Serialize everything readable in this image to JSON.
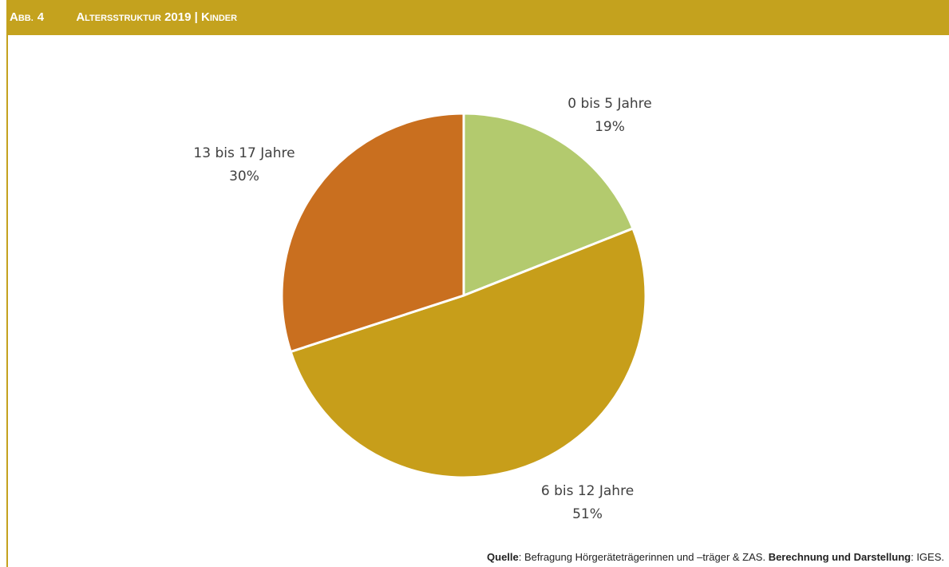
{
  "header": {
    "abb_first": "A",
    "abb_rest": "BB.",
    "abb_number": "4",
    "title_a_first": "A",
    "title_a_rest": "LTERSSTRUKTUR",
    "title_year": "2019",
    "title_sep": "|",
    "title_b_first": "K",
    "title_b_rest": "INDER"
  },
  "colors": {
    "accent": "#C4A21E",
    "slice_0_5": "#B3CA6E",
    "slice_6_12": "#C79E1A",
    "slice_13_17": "#C96F1F"
  },
  "chart_data": {
    "type": "pie",
    "title": "ABB. 4 ALTERSSTRUKTUR 2019 | KINDER",
    "slices": [
      {
        "label": "0 bis 5 Jahre",
        "value": 19,
        "value_label": "19%",
        "color": "#B3CA6E"
      },
      {
        "label": "6 bis 12 Jahre",
        "value": 51,
        "value_label": "51%",
        "color": "#C79E1A"
      },
      {
        "label": "13 bis 17 Jahre",
        "value": 30,
        "value_label": "30%",
        "color": "#C96F1F"
      }
    ],
    "start_angle": "12 o'clock",
    "direction": "clockwise",
    "legend": "none"
  },
  "source": {
    "quelle_label": "Quelle",
    "quelle_text": ": Befragung Hörgeräteträgerinnen und –träger & ZAS. ",
    "berechnung_label": "Berechnung und Darstellung",
    "berechnung_text": ": IGES."
  }
}
